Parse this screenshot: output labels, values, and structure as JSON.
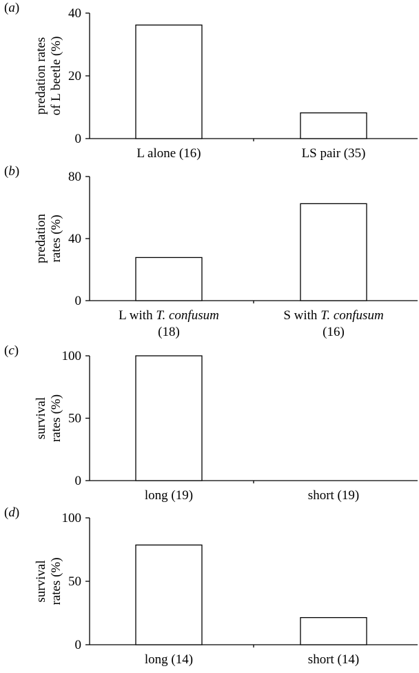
{
  "chart_data": [
    {
      "type": "bar",
      "panel_label": "a",
      "ylabel": [
        "predation rates",
        "of L beetle (%)"
      ],
      "ylim": [
        0,
        40
      ],
      "yticks": [
        0,
        20,
        40
      ],
      "categories": [
        [
          {
            "text": "L alone (16)",
            "italic": false
          }
        ],
        [
          {
            "text": "LS pair (35)",
            "italic": false
          }
        ]
      ],
      "values": [
        36.2,
        8.2
      ]
    },
    {
      "type": "bar",
      "panel_label": "b",
      "ylabel": [
        "predation",
        "rates (%)"
      ],
      "ylim": [
        0,
        80
      ],
      "yticks": [
        0,
        40,
        80
      ],
      "categories": [
        [
          {
            "text": "L with ",
            "italic": false
          },
          {
            "text": "T. confusum",
            "italic": true
          },
          {
            "text": "\n(18)",
            "italic": false
          }
        ],
        [
          {
            "text": "S with ",
            "italic": false
          },
          {
            "text": "T. confusum",
            "italic": true
          },
          {
            "text": "\n(16)",
            "italic": false
          }
        ]
      ],
      "values": [
        27.8,
        62.5
      ]
    },
    {
      "type": "bar",
      "panel_label": "c",
      "ylabel": [
        "survival",
        "rates (%)"
      ],
      "ylim": [
        0,
        100
      ],
      "yticks": [
        0,
        50,
        100
      ],
      "categories": [
        [
          {
            "text": "long (19)",
            "italic": false
          }
        ],
        [
          {
            "text": "short (19)",
            "italic": false
          }
        ]
      ],
      "values": [
        100,
        0
      ]
    },
    {
      "type": "bar",
      "panel_label": "d",
      "ylabel": [
        "survival",
        "rates (%)"
      ],
      "ylim": [
        0,
        100
      ],
      "yticks": [
        0,
        50,
        100
      ],
      "categories": [
        [
          {
            "text": "long (14)",
            "italic": false
          }
        ],
        [
          {
            "text": "short (14)",
            "italic": false
          }
        ]
      ],
      "values": [
        78.6,
        21.4
      ]
    }
  ]
}
